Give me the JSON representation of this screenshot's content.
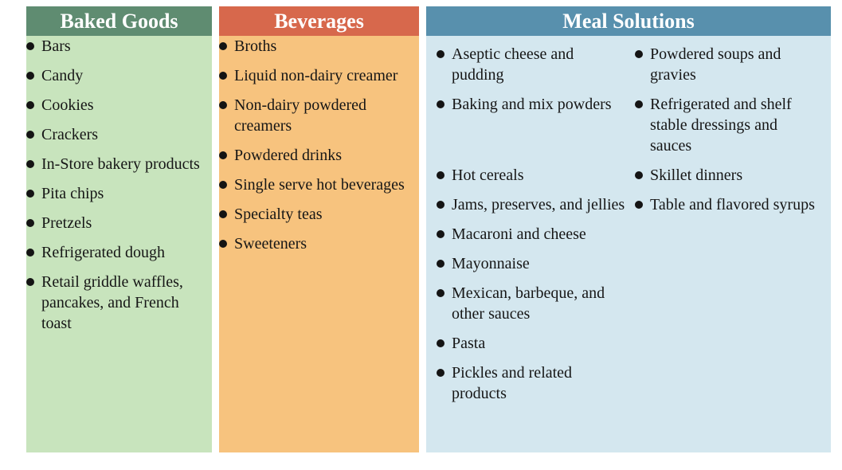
{
  "colors": {
    "baked_goods_header_bg": "#5f8c71",
    "baked_goods_body_bg": "#c8e4bd",
    "beverages_header_bg": "#d7684c",
    "beverages_body_bg": "#f7c37e",
    "meal_solutions_header_bg": "#5890ad",
    "meal_solutions_body_bg": "#d4e7ef",
    "header_text": "#ffffff",
    "body_text": "#161616",
    "bullet": "#141414"
  },
  "baked_goods": {
    "header": "Baked Goods",
    "items": [
      "Bars",
      "Candy",
      "Cookies",
      "Crackers",
      "In-Store bakery products",
      "Pita chips",
      "Pretzels",
      "Refrigerated dough",
      "Retail griddle waffles, pancakes, and French toast"
    ]
  },
  "beverages": {
    "header": "Beverages",
    "items": [
      "Broths",
      "Liquid non-dairy creamer",
      "Non-dairy powdered creamers",
      "Powdered drinks",
      "Single serve hot beverages",
      "Specialty teas",
      "Sweeteners"
    ]
  },
  "meal_solutions": {
    "header": "Meal Solutions",
    "rows": [
      {
        "left": "Aseptic cheese and pudding",
        "right": "Powdered soups and gravies"
      },
      {
        "left": "Baking and mix powders",
        "right": "Refrigerated and shelf stable dressings and sauces"
      },
      {
        "left": "Hot cereals",
        "right": "Skillet dinners"
      },
      {
        "left": "Jams, preserves, and jellies",
        "right": "Table and flavored syrups"
      },
      {
        "left": "Macaroni and cheese",
        "right": ""
      },
      {
        "left": "Mayonnaise",
        "right": ""
      },
      {
        "left": "Mexican, barbeque, and other sauces",
        "right": ""
      },
      {
        "left": "Pasta",
        "right": ""
      },
      {
        "left": "Pickles and related products",
        "right": ""
      }
    ]
  }
}
